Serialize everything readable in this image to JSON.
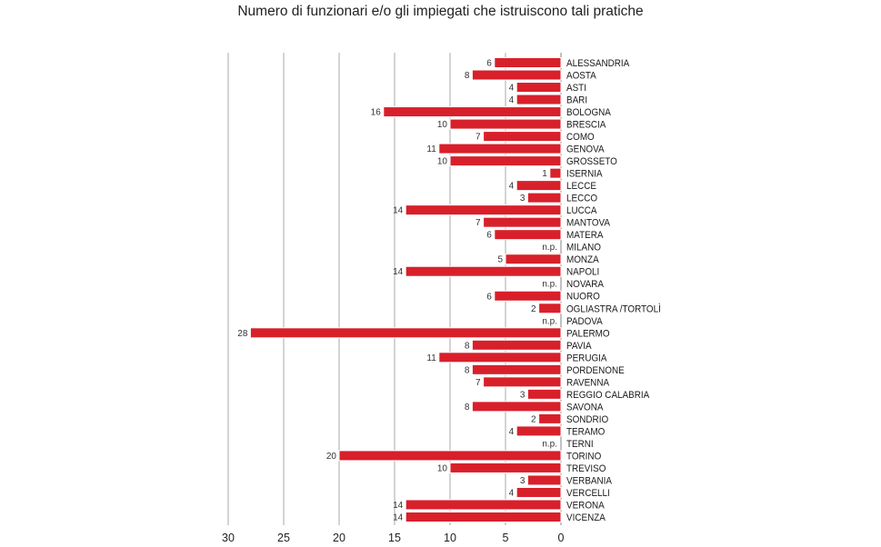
{
  "chart_data": {
    "type": "bar",
    "orientation": "horizontal-reversed",
    "title": "Numero di funzionari e/o gli impiegati che istruiscono tali pratiche",
    "xlabel": "",
    "ylabel": "",
    "xlim": [
      0,
      30
    ],
    "xticks": [
      30,
      25,
      20,
      15,
      10,
      5,
      0
    ],
    "grid": true,
    "bar_color": "#d8202b",
    "categories": [
      "ALESSANDRIA",
      "AOSTA",
      "ASTI",
      "BARI",
      "BOLOGNA",
      "BRESCIA",
      "COMO",
      "GENOVA",
      "GROSSETO",
      "ISERNIA",
      "LECCE",
      "LECCO",
      "LUCCA",
      "MANTOVA",
      "MATERA",
      "MILANO",
      "MONZA",
      "NAPOLI",
      "NOVARA",
      "NUORO",
      "OGLIASTRA /TORTOLÌ",
      "PADOVA",
      "PALERMO",
      "PAVIA",
      "PERUGIA",
      "PORDENONE",
      "RAVENNA",
      "REGGIO CALABRIA",
      "SAVONA",
      "SONDRIO",
      "TERAMO",
      "TERNI",
      "TORINO",
      "TREVISO",
      "VERBANIA",
      "VERCELLI",
      "VERONA",
      "VICENZA"
    ],
    "values": [
      6,
      8,
      4,
      4,
      16,
      10,
      7,
      11,
      10,
      1,
      4,
      3,
      14,
      7,
      6,
      null,
      5,
      14,
      null,
      6,
      2,
      null,
      28,
      8,
      11,
      8,
      7,
      3,
      8,
      2,
      4,
      null,
      20,
      10,
      3,
      4,
      14,
      14
    ],
    "missing_label": "n.p."
  }
}
